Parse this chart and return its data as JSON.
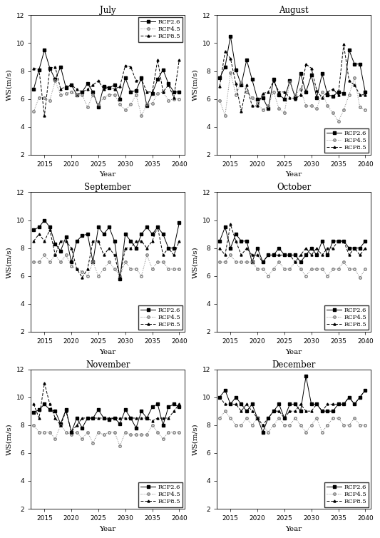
{
  "years": [
    2013,
    2014,
    2015,
    2016,
    2017,
    2018,
    2019,
    2020,
    2021,
    2022,
    2023,
    2024,
    2025,
    2026,
    2027,
    2028,
    2029,
    2030,
    2031,
    2032,
    2033,
    2034,
    2035,
    2036,
    2037,
    2038,
    2039,
    2040
  ],
  "months": [
    "July",
    "August",
    "September",
    "October",
    "November",
    "December"
  ],
  "ylim": [
    2,
    12
  ],
  "yticks": [
    2,
    4,
    6,
    8,
    10,
    12
  ],
  "xticks": [
    2015,
    2020,
    2025,
    2030,
    2035,
    2040
  ],
  "ylabel": "WS(m/s)",
  "xlabel": "Year",
  "legend_labels": [
    "RCP2.6",
    "RCP4.5",
    "RCP8.5"
  ],
  "data": {
    "July": {
      "rcp26": [
        6.7,
        8.1,
        9.5,
        8.2,
        7.4,
        8.3,
        6.8,
        7.0,
        6.3,
        6.5,
        7.1,
        6.5,
        5.4,
        6.9,
        6.8,
        7.0,
        6.0,
        7.5,
        6.5,
        6.6,
        7.5,
        5.5,
        6.4,
        7.4,
        8.1,
        7.1,
        6.5,
        6.5
      ],
      "rcp45": [
        5.1,
        6.1,
        6.1,
        5.9,
        7.3,
        6.3,
        6.4,
        6.5,
        6.3,
        6.3,
        5.4,
        6.3,
        5.6,
        6.1,
        6.3,
        6.3,
        5.6,
        5.2,
        5.6,
        6.3,
        4.8,
        5.6,
        5.7,
        6.4,
        6.5,
        5.9,
        6.0,
        6.0
      ],
      "rcp85": [
        8.2,
        8.1,
        4.8,
        8.2,
        8.3,
        6.7,
        6.9,
        7.0,
        6.7,
        6.5,
        6.7,
        7.0,
        7.3,
        6.7,
        6.8,
        6.7,
        6.9,
        8.4,
        8.3,
        7.3,
        7.4,
        6.5,
        6.5,
        8.8,
        6.5,
        7.0,
        6.1,
        8.8
      ]
    },
    "August": {
      "rcp26": [
        7.5,
        8.3,
        10.5,
        8.1,
        7.0,
        8.8,
        7.4,
        6.0,
        6.1,
        5.3,
        7.4,
        6.3,
        6.0,
        7.3,
        6.1,
        7.8,
        6.5,
        7.7,
        6.1,
        7.8,
        6.3,
        6.2,
        6.5,
        6.4,
        9.5,
        8.5,
        8.5,
        6.5
      ],
      "rcp45": [
        5.9,
        4.8,
        7.9,
        6.3,
        7.2,
        6.5,
        6.1,
        5.7,
        5.2,
        5.5,
        6.5,
        5.3,
        5.0,
        7.2,
        6.3,
        6.7,
        5.5,
        5.5,
        5.3,
        6.5,
        5.5,
        5.0,
        4.4,
        5.2,
        6.3,
        7.5,
        5.4,
        5.2
      ],
      "rcp85": [
        6.9,
        9.4,
        8.9,
        7.1,
        5.1,
        7.0,
        5.5,
        5.5,
        6.4,
        6.5,
        7.3,
        6.5,
        6.5,
        6.1,
        6.0,
        6.3,
        8.5,
        8.2,
        6.6,
        6.1,
        6.5,
        6.7,
        6.3,
        9.9,
        7.3,
        7.0,
        6.3,
        6.3
      ]
    },
    "September": {
      "rcp26": [
        9.3,
        9.5,
        10.0,
        9.5,
        8.3,
        7.8,
        8.8,
        7.0,
        8.5,
        8.9,
        9.0,
        7.0,
        9.5,
        9.0,
        9.5,
        8.5,
        5.8,
        9.0,
        8.5,
        8.0,
        9.0,
        9.5,
        9.0,
        9.5,
        9.0,
        8.0,
        8.0,
        9.8
      ],
      "rcp45": [
        7.0,
        7.0,
        7.5,
        7.0,
        7.5,
        7.0,
        7.5,
        6.7,
        6.5,
        6.3,
        6.0,
        7.0,
        6.0,
        6.5,
        7.0,
        6.5,
        6.0,
        7.0,
        6.5,
        6.5,
        6.0,
        7.5,
        6.5,
        7.0,
        7.0,
        6.5,
        6.5,
        6.5
      ],
      "rcp85": [
        8.5,
        9.0,
        8.5,
        9.3,
        7.5,
        8.5,
        8.5,
        8.0,
        6.5,
        5.9,
        6.5,
        8.5,
        8.5,
        7.5,
        8.0,
        7.5,
        5.9,
        8.0,
        8.0,
        8.5,
        8.5,
        8.0,
        8.5,
        9.5,
        7.5,
        8.0,
        7.5,
        8.5
      ]
    },
    "October": {
      "rcp26": [
        8.5,
        9.5,
        8.0,
        9.0,
        8.5,
        8.5,
        7.0,
        8.0,
        7.0,
        7.5,
        7.5,
        8.0,
        7.5,
        7.5,
        7.5,
        7.0,
        7.5,
        8.0,
        7.5,
        8.5,
        7.5,
        8.5,
        8.5,
        8.5,
        8.0,
        8.0,
        8.0,
        8.5
      ],
      "rcp45": [
        7.0,
        7.0,
        7.5,
        7.0,
        7.0,
        7.0,
        7.0,
        6.5,
        6.5,
        6.0,
        6.5,
        7.0,
        6.5,
        6.5,
        7.0,
        6.5,
        6.0,
        6.5,
        6.5,
        6.5,
        6.0,
        6.5,
        6.5,
        7.0,
        6.5,
        6.5,
        5.9,
        6.5
      ],
      "rcp85": [
        8.0,
        7.5,
        9.7,
        8.5,
        7.5,
        8.0,
        7.5,
        7.5,
        7.0,
        7.5,
        7.5,
        7.5,
        7.5,
        7.5,
        7.0,
        7.5,
        8.0,
        7.5,
        8.0,
        7.5,
        8.0,
        8.0,
        8.5,
        8.5,
        7.5,
        8.0,
        7.5,
        8.0
      ]
    },
    "November": {
      "rcp26": [
        8.9,
        9.1,
        9.5,
        9.1,
        9.0,
        8.1,
        9.1,
        7.5,
        8.5,
        7.8,
        8.5,
        8.5,
        9.1,
        8.5,
        8.4,
        8.5,
        8.1,
        9.1,
        8.5,
        7.8,
        9.0,
        8.5,
        9.3,
        9.5,
        8.0,
        9.3,
        9.5,
        9.3
      ],
      "rcp45": [
        8.0,
        7.5,
        7.5,
        7.5,
        7.0,
        8.0,
        7.5,
        7.3,
        7.5,
        7.0,
        7.5,
        6.7,
        7.5,
        7.3,
        7.5,
        7.5,
        6.5,
        7.5,
        7.3,
        7.3,
        7.3,
        7.3,
        8.0,
        7.5,
        7.0,
        7.5,
        7.5,
        7.5
      ],
      "rcp85": [
        9.5,
        8.5,
        11.0,
        9.5,
        8.5,
        8.0,
        9.0,
        7.5,
        8.0,
        8.5,
        8.5,
        8.5,
        8.5,
        8.5,
        8.5,
        8.5,
        8.5,
        8.5,
        8.5,
        8.5,
        8.5,
        8.5,
        8.3,
        8.5,
        8.5,
        8.5,
        9.0,
        9.5
      ]
    },
    "December": {
      "rcp26": [
        10.0,
        10.5,
        9.5,
        10.0,
        9.5,
        9.0,
        9.5,
        8.5,
        7.5,
        8.5,
        9.0,
        9.5,
        8.5,
        9.5,
        9.5,
        9.0,
        11.5,
        9.5,
        9.5,
        9.0,
        9.0,
        9.0,
        9.5,
        9.5,
        10.0,
        9.5,
        10.0,
        10.5
      ],
      "rcp45": [
        8.5,
        9.0,
        8.5,
        8.0,
        8.0,
        8.5,
        8.0,
        8.5,
        8.0,
        7.5,
        8.0,
        8.5,
        8.0,
        8.0,
        8.5,
        8.0,
        7.5,
        8.0,
        8.5,
        7.5,
        8.0,
        8.5,
        8.5,
        8.0,
        8.0,
        8.5,
        8.0,
        8.0
      ],
      "rcp85": [
        10.0,
        9.5,
        9.5,
        9.5,
        9.0,
        9.5,
        9.0,
        8.5,
        8.0,
        8.5,
        9.0,
        9.0,
        8.5,
        9.0,
        9.0,
        9.5,
        9.0,
        9.0,
        9.5,
        9.0,
        9.5,
        9.5,
        9.5,
        9.5,
        10.0,
        9.5,
        10.0,
        10.5
      ]
    }
  },
  "legend_positions": {
    "July": "upper right",
    "August": "lower right",
    "September": "lower right",
    "October": "lower right",
    "November": "lower right",
    "December": "lower right"
  }
}
